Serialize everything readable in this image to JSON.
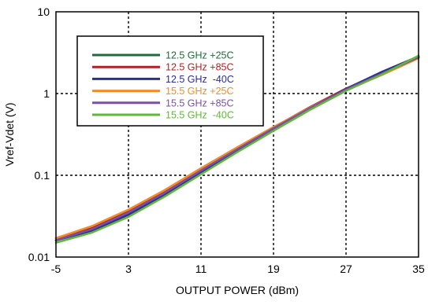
{
  "chart_data": {
    "type": "line",
    "title": "",
    "xlabel": "OUTPUT POWER  (dBm)",
    "ylabel": "Vref-Vdet (V)",
    "xlim": [
      -5,
      35
    ],
    "ylim": [
      0.01,
      10
    ],
    "y_scale": "log",
    "x_ticks": [
      -5,
      3,
      11,
      19,
      27,
      35
    ],
    "x_tick_labels": [
      "-5",
      "3",
      "11",
      "19",
      "27",
      "35"
    ],
    "y_ticks": [
      0.01,
      0.1,
      1,
      10
    ],
    "y_tick_labels": [
      "0.01",
      "0.1",
      "1",
      "10"
    ],
    "grid": "dashed",
    "legend_position": "top-left",
    "x": [
      -5,
      -1,
      3,
      7,
      11,
      15,
      19,
      23,
      27,
      31,
      35
    ],
    "series": [
      {
        "name": "12.5 GHz +25C",
        "color": "#1f6b3a",
        "values": [
          0.016,
          0.022,
          0.034,
          0.06,
          0.112,
          0.205,
          0.37,
          0.66,
          1.12,
          1.75,
          2.75
        ]
      },
      {
        "name": "12.5 GHz +85C",
        "color": "#b22222",
        "values": [
          0.017,
          0.023,
          0.036,
          0.063,
          0.118,
          0.215,
          0.385,
          0.68,
          1.15,
          1.78,
          2.8
        ]
      },
      {
        "name": "12.5 GHz  -40C",
        "color": "#2b2e8c",
        "values": [
          0.016,
          0.021,
          0.033,
          0.058,
          0.108,
          0.2,
          0.36,
          0.65,
          1.14,
          1.85,
          2.85
        ]
      },
      {
        "name": "15.5 GHz +25C",
        "color": "#f28c28",
        "values": [
          0.017,
          0.024,
          0.038,
          0.066,
          0.122,
          0.22,
          0.39,
          0.67,
          1.1,
          1.7,
          2.7
        ]
      },
      {
        "name": "15.5 GHz +85C",
        "color": "#7b4fa6",
        "values": [
          0.016,
          0.022,
          0.035,
          0.061,
          0.114,
          0.208,
          0.375,
          0.66,
          1.12,
          1.76,
          2.78
        ]
      },
      {
        "name": "15.5 GHz  -40C",
        "color": "#5fb83a",
        "values": [
          0.015,
          0.02,
          0.031,
          0.055,
          0.103,
          0.192,
          0.35,
          0.63,
          1.08,
          1.72,
          2.9
        ]
      }
    ]
  }
}
